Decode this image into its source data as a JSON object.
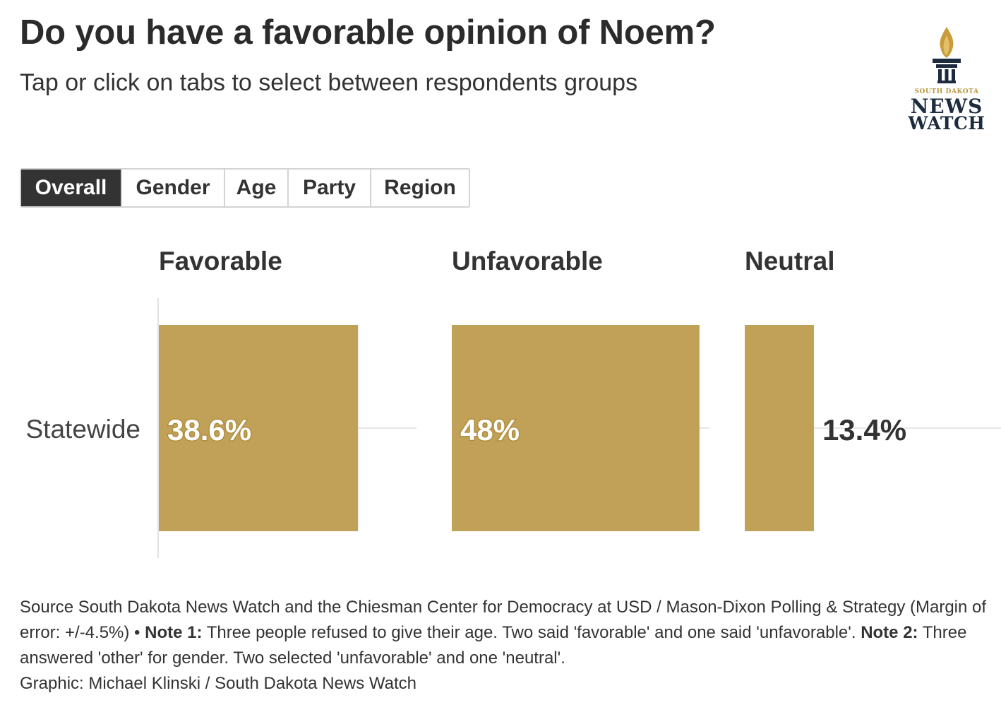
{
  "header": {
    "title": "Do you have a favorable opinion of Noem?",
    "subtitle": "Tap or click on tabs to select between respondents groups"
  },
  "logo": {
    "line1": "SOUTH DAKOTA",
    "line2": "NEWS",
    "line3": "WATCH",
    "colors": {
      "gold": "#b8973e",
      "navy": "#1c2b3e"
    }
  },
  "tabs": [
    {
      "label": "Overall",
      "active": true
    },
    {
      "label": "Gender",
      "active": false
    },
    {
      "label": "Age",
      "active": false
    },
    {
      "label": "Party",
      "active": false
    },
    {
      "label": "Region",
      "active": false
    }
  ],
  "chart_data": {
    "type": "bar",
    "orientation": "horizontal",
    "layout": "small-multiples",
    "bar_color": "#c1a157",
    "categories": [
      "Statewide"
    ],
    "series": [
      {
        "name": "Favorable",
        "values": [
          38.6
        ],
        "value_labels": [
          "38.6%"
        ],
        "label_position": "inside"
      },
      {
        "name": "Unfavorable",
        "values": [
          48
        ],
        "value_labels": [
          "48%"
        ],
        "label_position": "inside"
      },
      {
        "name": "Neutral",
        "values": [
          13.4
        ],
        "value_labels": [
          "13.4%"
        ],
        "label_position": "outside"
      }
    ],
    "xlim": [
      0,
      100
    ],
    "grid": false,
    "legend": "none"
  },
  "footer": {
    "source": "Source South Dakota News Watch and the Chiesman Center for Democracy at USD / Mason-Dixon Polling & Strategy (Margin of error: +/-4.5%) • ",
    "note1_label": "Note 1:",
    "note1_text": " Three people refused to give their age. Two said 'favorable' and one said 'unfavorable'. ",
    "note2_label": "Note 2:",
    "note2_text": " Three answered 'other' for gender. Two selected 'unfavorable' and one 'neutral'.",
    "credit": "Graphic: Michael Klinski / South Dakota News Watch"
  }
}
